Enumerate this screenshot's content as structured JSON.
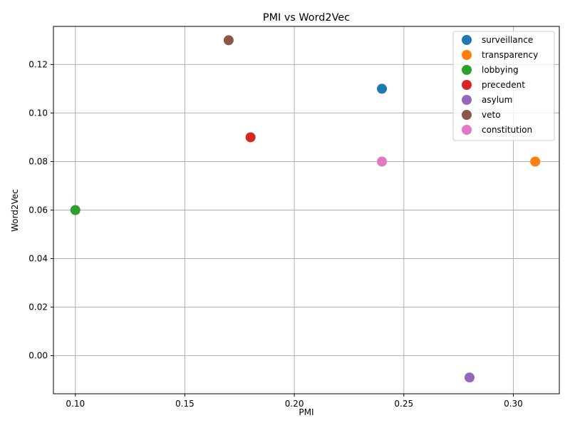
{
  "chart_data": {
    "type": "scatter",
    "title": "PMI vs Word2Vec",
    "xlabel": "PMI",
    "ylabel": "Word2Vec",
    "xlim": [
      0.09,
      0.321
    ],
    "ylim": [
      -0.0157,
      0.1357
    ],
    "xticks": [
      0.1,
      0.15,
      0.2,
      0.25,
      0.3
    ],
    "xtick_labels": [
      "0.10",
      "0.15",
      "0.20",
      "0.25",
      "0.30"
    ],
    "yticks": [
      0.0,
      0.02,
      0.04,
      0.06,
      0.08,
      0.1,
      0.12
    ],
    "ytick_labels": [
      "0.00",
      "0.02",
      "0.04",
      "0.06",
      "0.08",
      "0.10",
      "0.12"
    ],
    "grid": true,
    "legend_position": "top-right",
    "series": [
      {
        "name": "surveillance",
        "color": "#1f77b4",
        "x": [
          0.24
        ],
        "y": [
          0.11
        ]
      },
      {
        "name": "transparency",
        "color": "#ff7f0e",
        "x": [
          0.31
        ],
        "y": [
          0.08
        ]
      },
      {
        "name": "lobbying",
        "color": "#2ca02c",
        "x": [
          0.1
        ],
        "y": [
          0.06
        ]
      },
      {
        "name": "precedent",
        "color": "#d62728",
        "x": [
          0.18
        ],
        "y": [
          0.09
        ]
      },
      {
        "name": "asylum",
        "color": "#9467bd",
        "x": [
          0.28
        ],
        "y": [
          -0.009
        ]
      },
      {
        "name": "veto",
        "color": "#8c564b",
        "x": [
          0.17
        ],
        "y": [
          0.13
        ]
      },
      {
        "name": "constitution",
        "color": "#e377c2",
        "x": [
          0.24
        ],
        "y": [
          0.08
        ]
      }
    ]
  }
}
